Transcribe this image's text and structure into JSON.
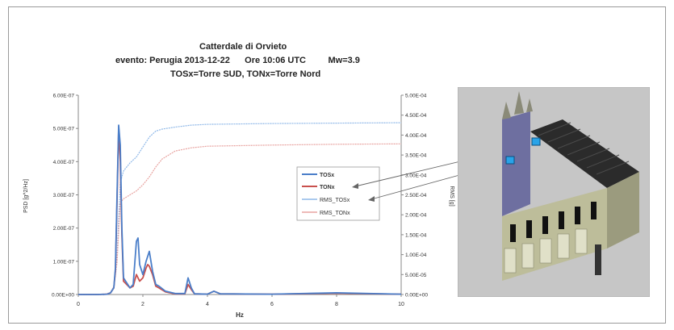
{
  "chart_data": {
    "type": "line",
    "title_lines": [
      "Catterdale di Orvieto",
      "evento: Perugia 2013-12-22      Ore 10:06 UTC         Mw=3.9",
      "TOSx=Torre SUD,  TONx=Torre Nord"
    ],
    "xlabel": "Hz",
    "ylabel_left": "PSD [g^2/Hz]",
    "ylabel_right": "RMS [g]",
    "xlim": [
      0,
      10
    ],
    "ylim_left": [
      0,
      6e-07
    ],
    "ylim_right": [
      0,
      0.0005
    ],
    "x_ticks": [
      "0",
      "2",
      "4",
      "6",
      "8",
      "10"
    ],
    "y_ticks_left": [
      "0.00E+00",
      "1.00E-07",
      "2.00E-07",
      "3.00E-07",
      "4.00E-07",
      "5.00E-07",
      "6.00E-07"
    ],
    "y_ticks_right": [
      "0.00E+00",
      "5.00E-05",
      "1.00E-04",
      "1.50E-04",
      "2.00E-04",
      "2.50E-04",
      "3.00E-04",
      "3.50E-04",
      "4.00E-04",
      "4.50E-04",
      "5.00E-04"
    ],
    "legend_position": "center-right",
    "series": [
      {
        "name": "TOSx",
        "axis": "left",
        "color": "#4a7ec9",
        "x": [
          0,
          0.6,
          0.9,
          1.0,
          1.1,
          1.15,
          1.2,
          1.25,
          1.3,
          1.35,
          1.4,
          1.5,
          1.6,
          1.7,
          1.8,
          1.85,
          1.9,
          2.0,
          2.1,
          2.2,
          2.25,
          2.3,
          2.4,
          2.5,
          2.7,
          3.0,
          3.3,
          3.4,
          3.5,
          3.6,
          4.0,
          4.2,
          4.4,
          6.0,
          8.0,
          10.0
        ],
        "y": [
          0,
          0.0,
          1e-09,
          5e-09,
          2e-08,
          8e-08,
          3e-07,
          5.1e-07,
          4.5e-07,
          2e-07,
          5e-08,
          3.5e-08,
          2e-08,
          3e-08,
          1.6e-07,
          1.7e-07,
          9e-08,
          6e-08,
          1e-07,
          1.3e-07,
          1e-07,
          7e-08,
          3e-08,
          2.5e-08,
          1e-08,
          3e-09,
          3e-09,
          5e-08,
          2e-08,
          2e-09,
          1e-09,
          1e-08,
          2e-09,
          1e-09,
          5e-09,
          1e-09
        ]
      },
      {
        "name": "TONx",
        "axis": "left",
        "color": "#c9504d",
        "x": [
          0,
          0.6,
          0.9,
          1.0,
          1.1,
          1.15,
          1.2,
          1.25,
          1.3,
          1.35,
          1.4,
          1.5,
          1.6,
          1.7,
          1.8,
          1.9,
          2.0,
          2.1,
          2.15,
          2.2,
          2.3,
          2.4,
          2.5,
          2.7,
          3.0,
          3.3,
          3.4,
          3.5,
          3.6,
          4.0,
          4.2,
          4.4,
          6.0,
          8.0,
          10.0
        ],
        "y": [
          0,
          0.0,
          1e-09,
          5e-09,
          2e-08,
          7e-08,
          2.8e-07,
          5e-07,
          4e-07,
          1.8e-07,
          4e-08,
          3e-08,
          2e-08,
          2.5e-08,
          6e-08,
          4e-08,
          5e-08,
          8e-08,
          9e-08,
          8.5e-08,
          6e-08,
          2.5e-08,
          2e-08,
          8e-09,
          2e-09,
          2e-09,
          3e-08,
          1.5e-08,
          2e-09,
          1e-09,
          1e-08,
          2e-09,
          1e-09,
          4e-09,
          1e-09
        ]
      },
      {
        "name": "RMS_TOSx",
        "axis": "right",
        "color": "#8fb8e8",
        "x": [
          0,
          0.8,
          1.0,
          1.1,
          1.2,
          1.3,
          1.4,
          1.5,
          1.6,
          1.8,
          2.0,
          2.2,
          2.4,
          2.6,
          3.0,
          3.5,
          4.0,
          6.0,
          8.0,
          10.0
        ],
        "y": [
          0,
          0,
          5e-06,
          2e-05,
          0.0001,
          0.00028,
          0.00031,
          0.00032,
          0.00033,
          0.000345,
          0.00037,
          0.000395,
          0.00041,
          0.000415,
          0.00042,
          0.000425,
          0.000427,
          0.000429,
          0.00043,
          0.000431
        ]
      },
      {
        "name": "RMS_TONx",
        "axis": "right",
        "color": "#e8a3a0",
        "x": [
          0,
          0.8,
          1.0,
          1.1,
          1.2,
          1.3,
          1.4,
          1.5,
          1.6,
          1.8,
          2.0,
          2.2,
          2.4,
          2.6,
          3.0,
          3.5,
          4.0,
          6.0,
          8.0,
          10.0
        ],
        "y": [
          0,
          0,
          5e-06,
          2e-05,
          8e-05,
          0.00023,
          0.00024,
          0.000245,
          0.00025,
          0.00026,
          0.000275,
          0.000295,
          0.00032,
          0.00034,
          0.00036,
          0.000368,
          0.000372,
          0.000375,
          0.000377,
          0.000378
        ]
      }
    ]
  }
}
